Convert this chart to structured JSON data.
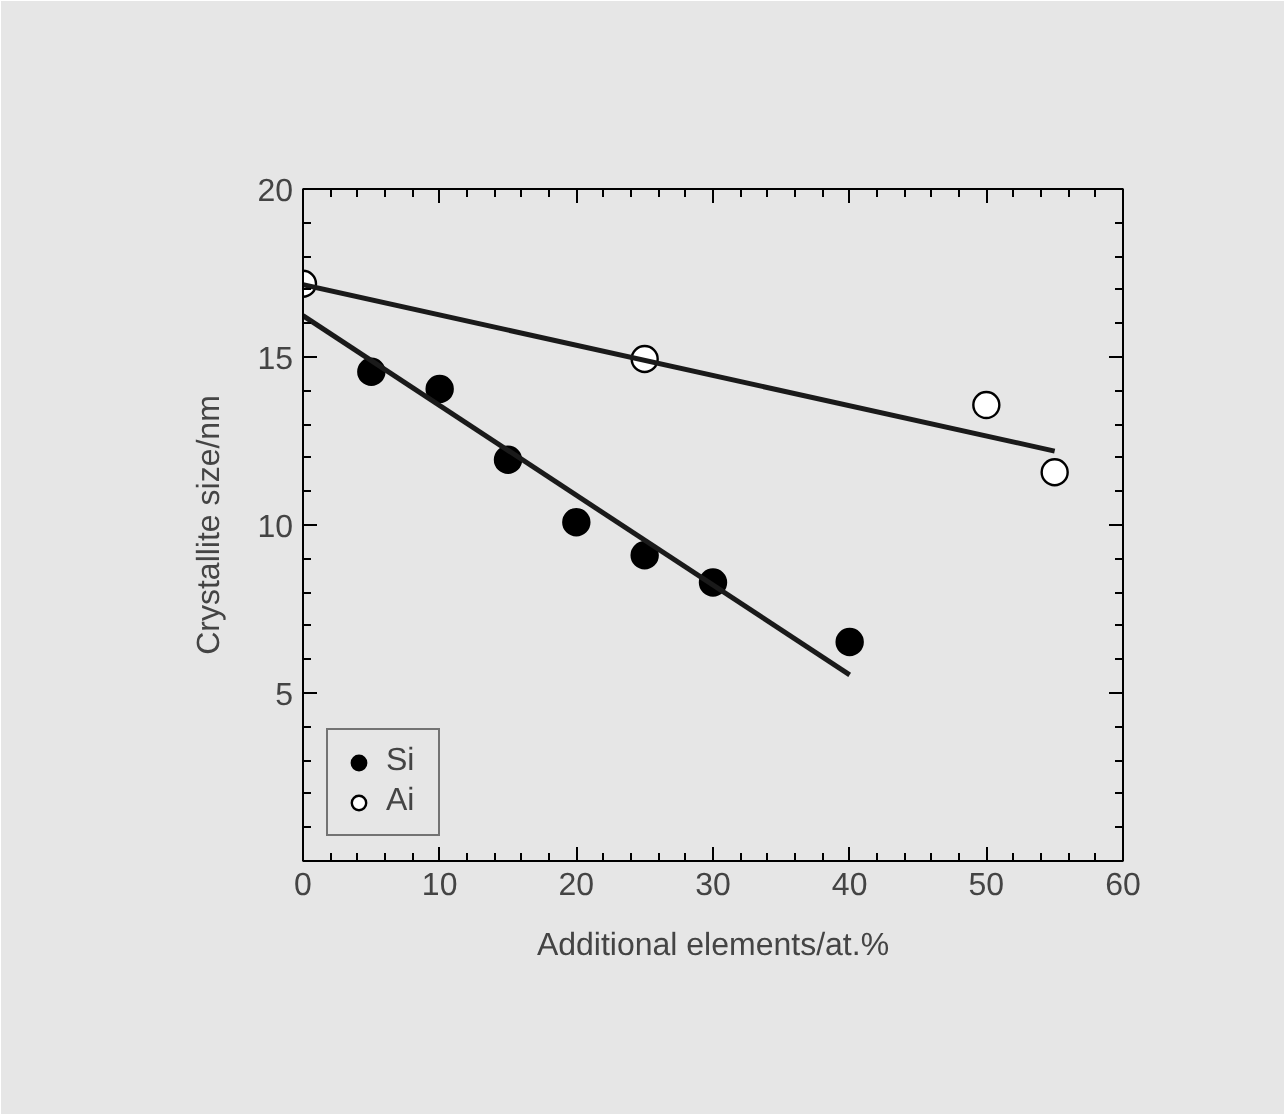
{
  "chart_data": {
    "type": "scatter",
    "xlabel": "Additional elements/at.%",
    "ylabel": "Crystallite size/nm",
    "xlim": [
      0,
      60
    ],
    "xticks": [
      0,
      10,
      20,
      30,
      40,
      50,
      60
    ],
    "ylim": [
      0,
      20
    ],
    "yticks": [
      5,
      10,
      15,
      20
    ],
    "legend": "bottom left",
    "series": [
      {
        "name": "Si",
        "color": "#000000",
        "marker": "circle",
        "x": [
          5,
          10,
          15,
          20,
          25,
          30,
          40
        ],
        "values": [
          14.56,
          14.05,
          11.94,
          10.08,
          9.1,
          8.29,
          6.52
        ]
      },
      {
        "name": "Ai",
        "color": "#ffffff",
        "marker": "circle",
        "x": [
          0,
          25,
          50,
          55
        ],
        "values": [
          17.18,
          14.94,
          13.57,
          11.57
        ]
      },
      {
        "type": "line",
        "color": "#1a1a1a",
        "marker": "none",
        "x": [
          0,
          40
        ],
        "values": [
          16.23,
          5.54
        ]
      },
      {
        "type": "line",
        "color": "#1a1a1a",
        "marker": "none",
        "x": [
          0,
          55
        ],
        "values": [
          17.15,
          12.2
        ]
      }
    ]
  }
}
